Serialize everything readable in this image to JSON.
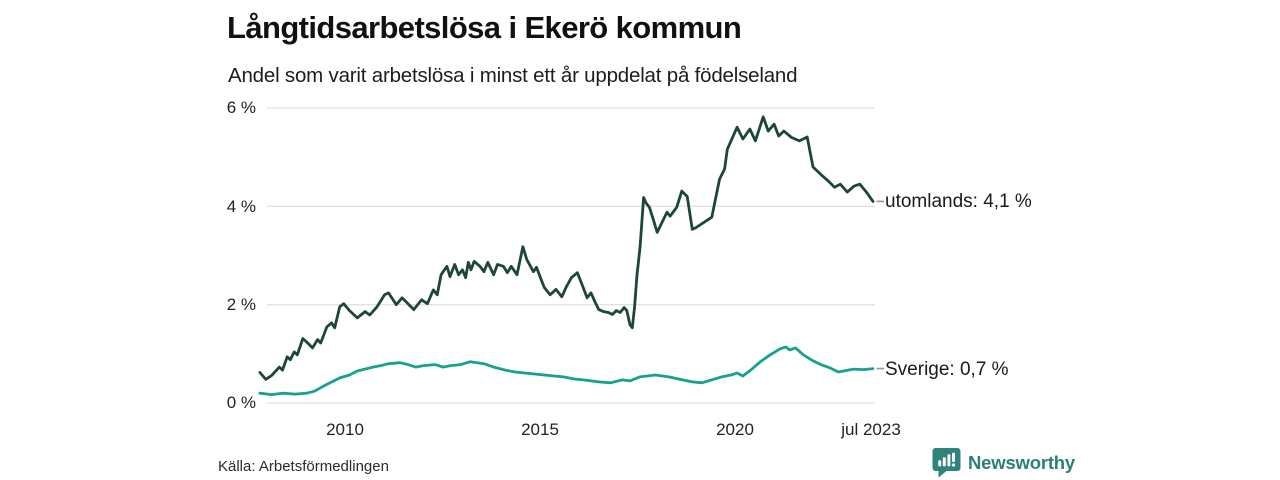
{
  "header": {
    "title": "Långtidsarbetslösa i Ekerö kommun",
    "subtitle": "Andel som varit arbetslösa i minst ett år uppdelat på födelseland"
  },
  "axes": {
    "y_ticks": [
      {
        "label": "6 %",
        "value": 6
      },
      {
        "label": "4 %",
        "value": 4
      },
      {
        "label": "2 %",
        "value": 2
      },
      {
        "label": "0 %",
        "value": 0
      }
    ],
    "x_ticks": [
      {
        "label": "2010",
        "value": 2010
      },
      {
        "label": "2015",
        "value": 2015
      },
      {
        "label": "2020",
        "value": 2020
      },
      {
        "label": "jul 2023",
        "value": 2023.54
      }
    ]
  },
  "chart_data": {
    "type": "line",
    "title": "Långtidsarbetslösa i Ekerö kommun",
    "subtitle": "Andel som varit arbetslösa i minst ett år uppdelat på födelseland",
    "unit": "%",
    "xlim": [
      2007.75,
      2023.54
    ],
    "ylim": [
      0,
      6
    ],
    "grid": "horizontal",
    "legend_position": "right-end-labels",
    "series": [
      {
        "name": "utomlands",
        "color": "#1c4638",
        "last_value": 4.1,
        "last_value_label": "utomlands: 4,1 %",
        "points": [
          [
            2007.8,
            0.62
          ],
          [
            2007.95,
            0.48
          ],
          [
            2008.1,
            0.56
          ],
          [
            2008.3,
            0.73
          ],
          [
            2008.38,
            0.67
          ],
          [
            2008.5,
            0.94
          ],
          [
            2008.58,
            0.88
          ],
          [
            2008.68,
            1.04
          ],
          [
            2008.76,
            0.98
          ],
          [
            2008.9,
            1.31
          ],
          [
            2009.0,
            1.24
          ],
          [
            2009.15,
            1.12
          ],
          [
            2009.28,
            1.29
          ],
          [
            2009.36,
            1.22
          ],
          [
            2009.52,
            1.55
          ],
          [
            2009.64,
            1.63
          ],
          [
            2009.72,
            1.53
          ],
          [
            2009.85,
            1.96
          ],
          [
            2009.95,
            2.02
          ],
          [
            2010.1,
            1.88
          ],
          [
            2010.3,
            1.73
          ],
          [
            2010.5,
            1.86
          ],
          [
            2010.62,
            1.79
          ],
          [
            2010.8,
            1.95
          ],
          [
            2011.0,
            2.2
          ],
          [
            2011.1,
            2.24
          ],
          [
            2011.3,
            2.0
          ],
          [
            2011.45,
            2.14
          ],
          [
            2011.6,
            2.02
          ],
          [
            2011.75,
            1.9
          ],
          [
            2011.95,
            2.1
          ],
          [
            2012.1,
            2.02
          ],
          [
            2012.25,
            2.3
          ],
          [
            2012.35,
            2.2
          ],
          [
            2012.45,
            2.61
          ],
          [
            2012.6,
            2.78
          ],
          [
            2012.68,
            2.57
          ],
          [
            2012.8,
            2.82
          ],
          [
            2012.9,
            2.61
          ],
          [
            2013.0,
            2.71
          ],
          [
            2013.08,
            2.55
          ],
          [
            2013.15,
            2.86
          ],
          [
            2013.22,
            2.71
          ],
          [
            2013.3,
            2.88
          ],
          [
            2013.45,
            2.78
          ],
          [
            2013.55,
            2.67
          ],
          [
            2013.65,
            2.86
          ],
          [
            2013.8,
            2.61
          ],
          [
            2013.9,
            2.82
          ],
          [
            2014.05,
            2.78
          ],
          [
            2014.15,
            2.65
          ],
          [
            2014.25,
            2.78
          ],
          [
            2014.4,
            2.61
          ],
          [
            2014.55,
            3.18
          ],
          [
            2014.65,
            2.92
          ],
          [
            2014.72,
            2.82
          ],
          [
            2014.82,
            2.67
          ],
          [
            2014.9,
            2.76
          ],
          [
            2015.0,
            2.55
          ],
          [
            2015.1,
            2.35
          ],
          [
            2015.25,
            2.2
          ],
          [
            2015.4,
            2.31
          ],
          [
            2015.55,
            2.16
          ],
          [
            2015.67,
            2.37
          ],
          [
            2015.8,
            2.55
          ],
          [
            2015.95,
            2.65
          ],
          [
            2016.1,
            2.35
          ],
          [
            2016.2,
            2.14
          ],
          [
            2016.3,
            2.24
          ],
          [
            2016.4,
            2.06
          ],
          [
            2016.5,
            1.9
          ],
          [
            2016.62,
            1.86
          ],
          [
            2016.75,
            1.84
          ],
          [
            2016.85,
            1.8
          ],
          [
            2016.95,
            1.88
          ],
          [
            2017.05,
            1.84
          ],
          [
            2017.15,
            1.94
          ],
          [
            2017.22,
            1.88
          ],
          [
            2017.3,
            1.59
          ],
          [
            2017.36,
            1.53
          ],
          [
            2017.42,
            1.96
          ],
          [
            2017.48,
            2.61
          ],
          [
            2017.52,
            2.88
          ],
          [
            2017.56,
            3.18
          ],
          [
            2017.65,
            4.18
          ],
          [
            2017.72,
            4.06
          ],
          [
            2017.8,
            3.98
          ],
          [
            2017.9,
            3.73
          ],
          [
            2018.0,
            3.47
          ],
          [
            2018.25,
            3.88
          ],
          [
            2018.33,
            3.8
          ],
          [
            2018.5,
            3.98
          ],
          [
            2018.63,
            4.31
          ],
          [
            2018.77,
            4.2
          ],
          [
            2018.9,
            3.53
          ],
          [
            2019.0,
            3.57
          ],
          [
            2019.25,
            3.7
          ],
          [
            2019.4,
            3.78
          ],
          [
            2019.6,
            4.55
          ],
          [
            2019.73,
            4.76
          ],
          [
            2019.8,
            5.16
          ],
          [
            2020.05,
            5.61
          ],
          [
            2020.2,
            5.37
          ],
          [
            2020.38,
            5.57
          ],
          [
            2020.52,
            5.33
          ],
          [
            2020.72,
            5.82
          ],
          [
            2020.85,
            5.53
          ],
          [
            2021.0,
            5.67
          ],
          [
            2021.12,
            5.43
          ],
          [
            2021.25,
            5.53
          ],
          [
            2021.45,
            5.4
          ],
          [
            2021.65,
            5.33
          ],
          [
            2021.85,
            5.41
          ],
          [
            2022.0,
            4.8
          ],
          [
            2022.2,
            4.65
          ],
          [
            2022.4,
            4.51
          ],
          [
            2022.55,
            4.39
          ],
          [
            2022.7,
            4.45
          ],
          [
            2022.88,
            4.29
          ],
          [
            2023.05,
            4.41
          ],
          [
            2023.2,
            4.45
          ],
          [
            2023.35,
            4.31
          ],
          [
            2023.45,
            4.2
          ],
          [
            2023.54,
            4.1
          ]
        ]
      },
      {
        "name": "Sverige",
        "color": "#16a28f",
        "last_value": 0.7,
        "last_value_label": "Sverige: 0,7 %",
        "points": [
          [
            2007.8,
            0.2
          ],
          [
            2008.1,
            0.17
          ],
          [
            2008.4,
            0.2
          ],
          [
            2008.7,
            0.18
          ],
          [
            2009.0,
            0.2
          ],
          [
            2009.2,
            0.24
          ],
          [
            2009.4,
            0.33
          ],
          [
            2009.6,
            0.41
          ],
          [
            2009.85,
            0.51
          ],
          [
            2010.1,
            0.57
          ],
          [
            2010.3,
            0.65
          ],
          [
            2010.7,
            0.73
          ],
          [
            2010.9,
            0.76
          ],
          [
            2011.1,
            0.8
          ],
          [
            2011.4,
            0.82
          ],
          [
            2011.6,
            0.78
          ],
          [
            2011.8,
            0.73
          ],
          [
            2012.0,
            0.76
          ],
          [
            2012.3,
            0.78
          ],
          [
            2012.5,
            0.73
          ],
          [
            2012.7,
            0.76
          ],
          [
            2012.95,
            0.78
          ],
          [
            2013.2,
            0.84
          ],
          [
            2013.55,
            0.8
          ],
          [
            2013.8,
            0.73
          ],
          [
            2014.1,
            0.67
          ],
          [
            2014.35,
            0.63
          ],
          [
            2014.6,
            0.61
          ],
          [
            2014.85,
            0.59
          ],
          [
            2015.1,
            0.57
          ],
          [
            2015.35,
            0.55
          ],
          [
            2015.6,
            0.53
          ],
          [
            2015.85,
            0.49
          ],
          [
            2016.1,
            0.47
          ],
          [
            2016.3,
            0.45
          ],
          [
            2016.5,
            0.43
          ],
          [
            2016.8,
            0.41
          ],
          [
            2017.1,
            0.47
          ],
          [
            2017.3,
            0.45
          ],
          [
            2017.55,
            0.53
          ],
          [
            2017.95,
            0.57
          ],
          [
            2018.3,
            0.53
          ],
          [
            2018.65,
            0.47
          ],
          [
            2018.9,
            0.43
          ],
          [
            2019.15,
            0.41
          ],
          [
            2019.4,
            0.47
          ],
          [
            2019.65,
            0.53
          ],
          [
            2019.9,
            0.57
          ],
          [
            2020.05,
            0.61
          ],
          [
            2020.2,
            0.55
          ],
          [
            2020.4,
            0.67
          ],
          [
            2020.65,
            0.84
          ],
          [
            2020.9,
            0.98
          ],
          [
            2021.15,
            1.1
          ],
          [
            2021.3,
            1.14
          ],
          [
            2021.4,
            1.08
          ],
          [
            2021.55,
            1.12
          ],
          [
            2021.75,
            0.98
          ],
          [
            2021.95,
            0.88
          ],
          [
            2022.2,
            0.78
          ],
          [
            2022.45,
            0.71
          ],
          [
            2022.65,
            0.63
          ],
          [
            2022.9,
            0.67
          ],
          [
            2023.05,
            0.69
          ],
          [
            2023.3,
            0.68
          ],
          [
            2023.54,
            0.7
          ]
        ]
      }
    ]
  },
  "footer": {
    "source": "Källa: Arbetsförmedlingen",
    "brand": "Newsworthy"
  },
  "colors": {
    "utomlands_line": "#1c4638",
    "sverige_line": "#16a28f",
    "grid": "#e2e2e2",
    "connector": "#999999",
    "brand": "#2e837c",
    "text": "#1a1a1a"
  }
}
